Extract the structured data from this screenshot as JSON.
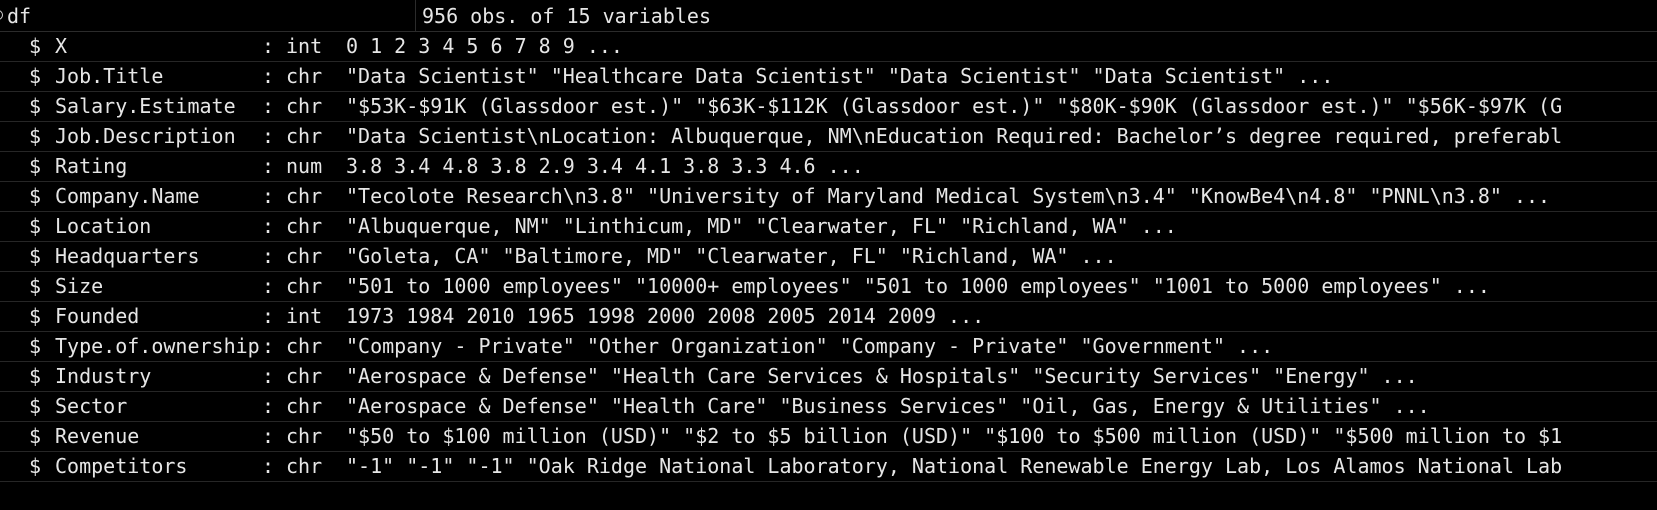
{
  "header": {
    "object_name": "df",
    "summary": "956 obs. of 15 variables"
  },
  "variables": [
    {
      "prefix": "$",
      "name": "X",
      "sep": ":",
      "type": "int",
      "values": "0 1 2 3 4 5 6 7 8 9 ..."
    },
    {
      "prefix": "$",
      "name": "Job.Title",
      "sep": ":",
      "type": "chr",
      "values": "\"Data Scientist\" \"Healthcare Data Scientist\" \"Data Scientist\" \"Data Scientist\" ..."
    },
    {
      "prefix": "$",
      "name": "Salary.Estimate",
      "sep": ":",
      "type": "chr",
      "values": "\"$53K-$91K (Glassdoor est.)\" \"$63K-$112K (Glassdoor est.)\" \"$80K-$90K (Glassdoor est.)\" \"$56K-$97K (G"
    },
    {
      "prefix": "$",
      "name": "Job.Description",
      "sep": ":",
      "type": "chr",
      "values": "\"Data Scientist\\nLocation: Albuquerque, NM\\nEducation Required: Bachelor’s degree required, preferabl"
    },
    {
      "prefix": "$",
      "name": "Rating",
      "sep": ":",
      "type": "num",
      "values": "3.8 3.4 4.8 3.8 2.9 3.4 4.1 3.8 3.3 4.6 ..."
    },
    {
      "prefix": "$",
      "name": "Company.Name",
      "sep": ":",
      "type": "chr",
      "values": "\"Tecolote Research\\n3.8\" \"University of Maryland Medical System\\n3.4\" \"KnowBe4\\n4.8\" \"PNNL\\n3.8\" ..."
    },
    {
      "prefix": "$",
      "name": "Location",
      "sep": ":",
      "type": "chr",
      "values": "\"Albuquerque, NM\" \"Linthicum, MD\" \"Clearwater, FL\" \"Richland, WA\" ..."
    },
    {
      "prefix": "$",
      "name": "Headquarters",
      "sep": ":",
      "type": "chr",
      "values": "\"Goleta, CA\" \"Baltimore, MD\" \"Clearwater, FL\" \"Richland, WA\" ..."
    },
    {
      "prefix": "$",
      "name": "Size",
      "sep": ":",
      "type": "chr",
      "values": "\"501 to 1000 employees\" \"10000+ employees\" \"501 to 1000 employees\" \"1001 to 5000 employees\" ..."
    },
    {
      "prefix": "$",
      "name": "Founded",
      "sep": ":",
      "type": "int",
      "values": "1973 1984 2010 1965 1998 2000 2008 2005 2014 2009 ..."
    },
    {
      "prefix": "$",
      "name": "Type.of.ownership",
      "sep": ":",
      "type": "chr",
      "values": "\"Company - Private\" \"Other Organization\" \"Company - Private\" \"Government\" ..."
    },
    {
      "prefix": "$",
      "name": "Industry",
      "sep": ":",
      "type": "chr",
      "values": "\"Aerospace & Defense\" \"Health Care Services & Hospitals\" \"Security Services\" \"Energy\" ..."
    },
    {
      "prefix": "$",
      "name": "Sector",
      "sep": ":",
      "type": "chr",
      "values": "\"Aerospace & Defense\" \"Health Care\" \"Business Services\" \"Oil, Gas, Energy & Utilities\" ..."
    },
    {
      "prefix": "$",
      "name": "Revenue",
      "sep": ":",
      "type": "chr",
      "values": "\"$50 to $100 million (USD)\" \"$2 to $5 billion (USD)\" \"$100 to $500 million (USD)\" \"$500 million to $1"
    },
    {
      "prefix": "$",
      "name": "Competitors",
      "sep": ":",
      "type": "chr",
      "values": "\"-1\" \"-1\" \"-1\" \"Oak Ridge National Laboratory, National Renewable Energy Lab, Los Alamos National Lab"
    }
  ],
  "colors": {
    "background": "#000000",
    "text": "#e6e6e6",
    "gridline": "#262626"
  },
  "icons": {
    "toggle": "collapse-toggle-icon"
  }
}
